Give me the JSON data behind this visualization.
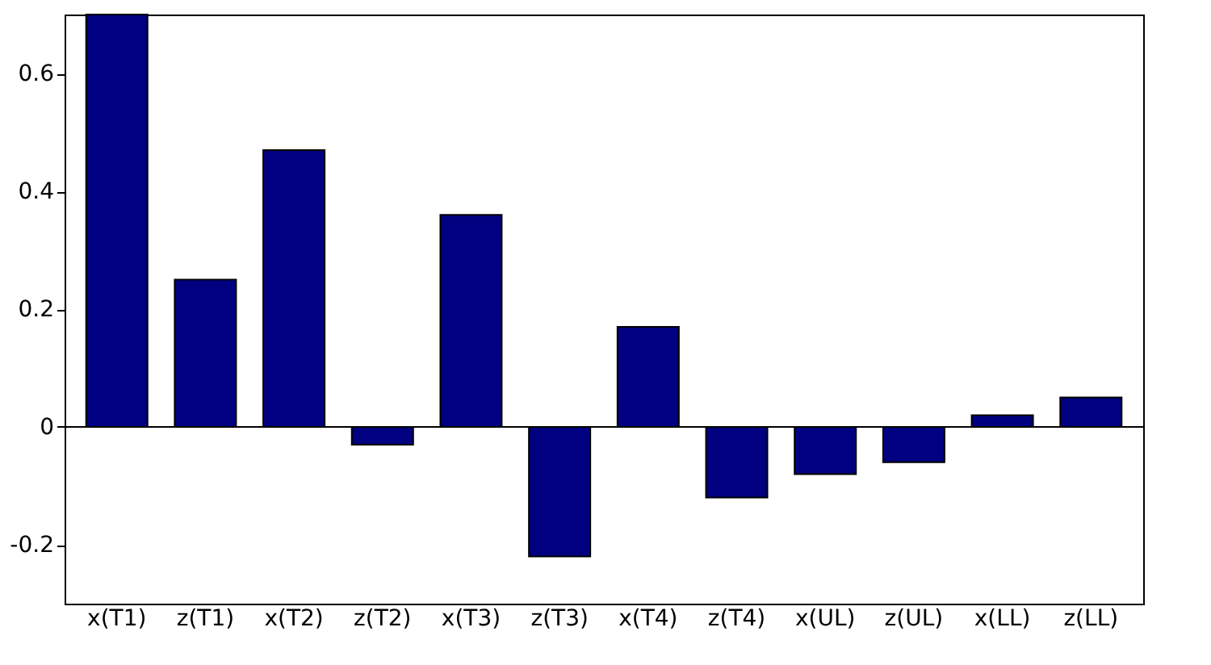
{
  "chart_data": {
    "type": "bar",
    "categories": [
      "x(T1)",
      "z(T1)",
      "x(T2)",
      "z(T2)",
      "x(T3)",
      "z(T3)",
      "x(T4)",
      "z(T4)",
      "x(UL)",
      "z(UL)",
      "x(LL)",
      "z(LL)"
    ],
    "values": [
      0.7,
      0.25,
      0.47,
      -0.03,
      0.36,
      -0.22,
      0.17,
      -0.12,
      -0.08,
      -0.06,
      0.02,
      0.05
    ],
    "color": "#000080",
    "ylim": [
      -0.3,
      0.7
    ],
    "yticks": [
      {
        "value": -0.2,
        "label": "-0.2"
      },
      0,
      0.2,
      0.4,
      0.6
    ],
    "ref_lines": [
      {
        "axis": "y",
        "value": 0,
        "label": null,
        "color": "#000000"
      }
    ],
    "grid": false
  }
}
